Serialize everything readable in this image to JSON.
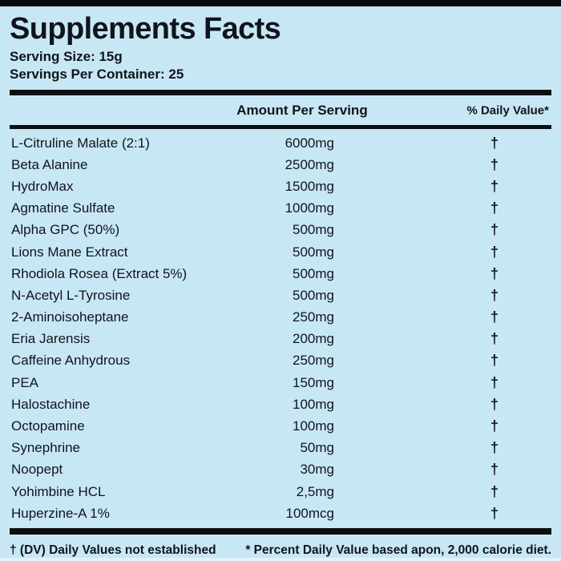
{
  "panel": {
    "title": "Supplements Facts",
    "serving_size": "Serving Size: 15g",
    "servings_per_container": "Servings Per Container: 25"
  },
  "table": {
    "headers": {
      "amount": "Amount Per Serving",
      "daily_value": "% Daily Value*"
    },
    "rows": [
      {
        "name": "L-Citruline Malate (2:1)",
        "amount": "6000mg",
        "daily_value": "†"
      },
      {
        "name": "Beta Alanine",
        "amount": "2500mg",
        "daily_value": "†"
      },
      {
        "name": "HydroMax",
        "amount": "1500mg",
        "daily_value": "†"
      },
      {
        "name": "Agmatine Sulfate",
        "amount": "1000mg",
        "daily_value": "†"
      },
      {
        "name": "Alpha GPC (50%)",
        "amount": "500mg",
        "daily_value": "†"
      },
      {
        "name": "Lions Mane Extract",
        "amount": "500mg",
        "daily_value": "†"
      },
      {
        "name": "Rhodiola Rosea (Extract 5%)",
        "amount": "500mg",
        "daily_value": "†"
      },
      {
        "name": "N-Acetyl L-Tyrosine",
        "amount": "500mg",
        "daily_value": "†"
      },
      {
        "name": "2-Aminoisoheptane",
        "amount": "250mg",
        "daily_value": "†"
      },
      {
        "name": "Eria Jarensis",
        "amount": "200mg",
        "daily_value": "†"
      },
      {
        "name": "Caffeine Anhydrous",
        "amount": "250mg",
        "daily_value": "†"
      },
      {
        "name": "PEA",
        "amount": "150mg",
        "daily_value": "†"
      },
      {
        "name": "Halostachine",
        "amount": "100mg",
        "daily_value": "†"
      },
      {
        "name": "Octopamine",
        "amount": "100mg",
        "daily_value": "†"
      },
      {
        "name": "Synephrine",
        "amount": "50mg",
        "daily_value": "†"
      },
      {
        "name": "Noopept",
        "amount": "30mg",
        "daily_value": "†"
      },
      {
        "name": "Yohimbine HCL",
        "amount": "2,5mg",
        "daily_value": "†"
      },
      {
        "name": "Huperzine-A 1%",
        "amount": "100mcg",
        "daily_value": "†"
      }
    ]
  },
  "footnotes": {
    "left": "† (DV) Daily Values not established",
    "right": "* Percent Daily Value based apon, 2,000 calorie diet."
  },
  "colors": {
    "background": "#c8e7f5",
    "text": "#10141c",
    "rule": "#0b0e13",
    "top_bar": "#0a0a0a"
  }
}
